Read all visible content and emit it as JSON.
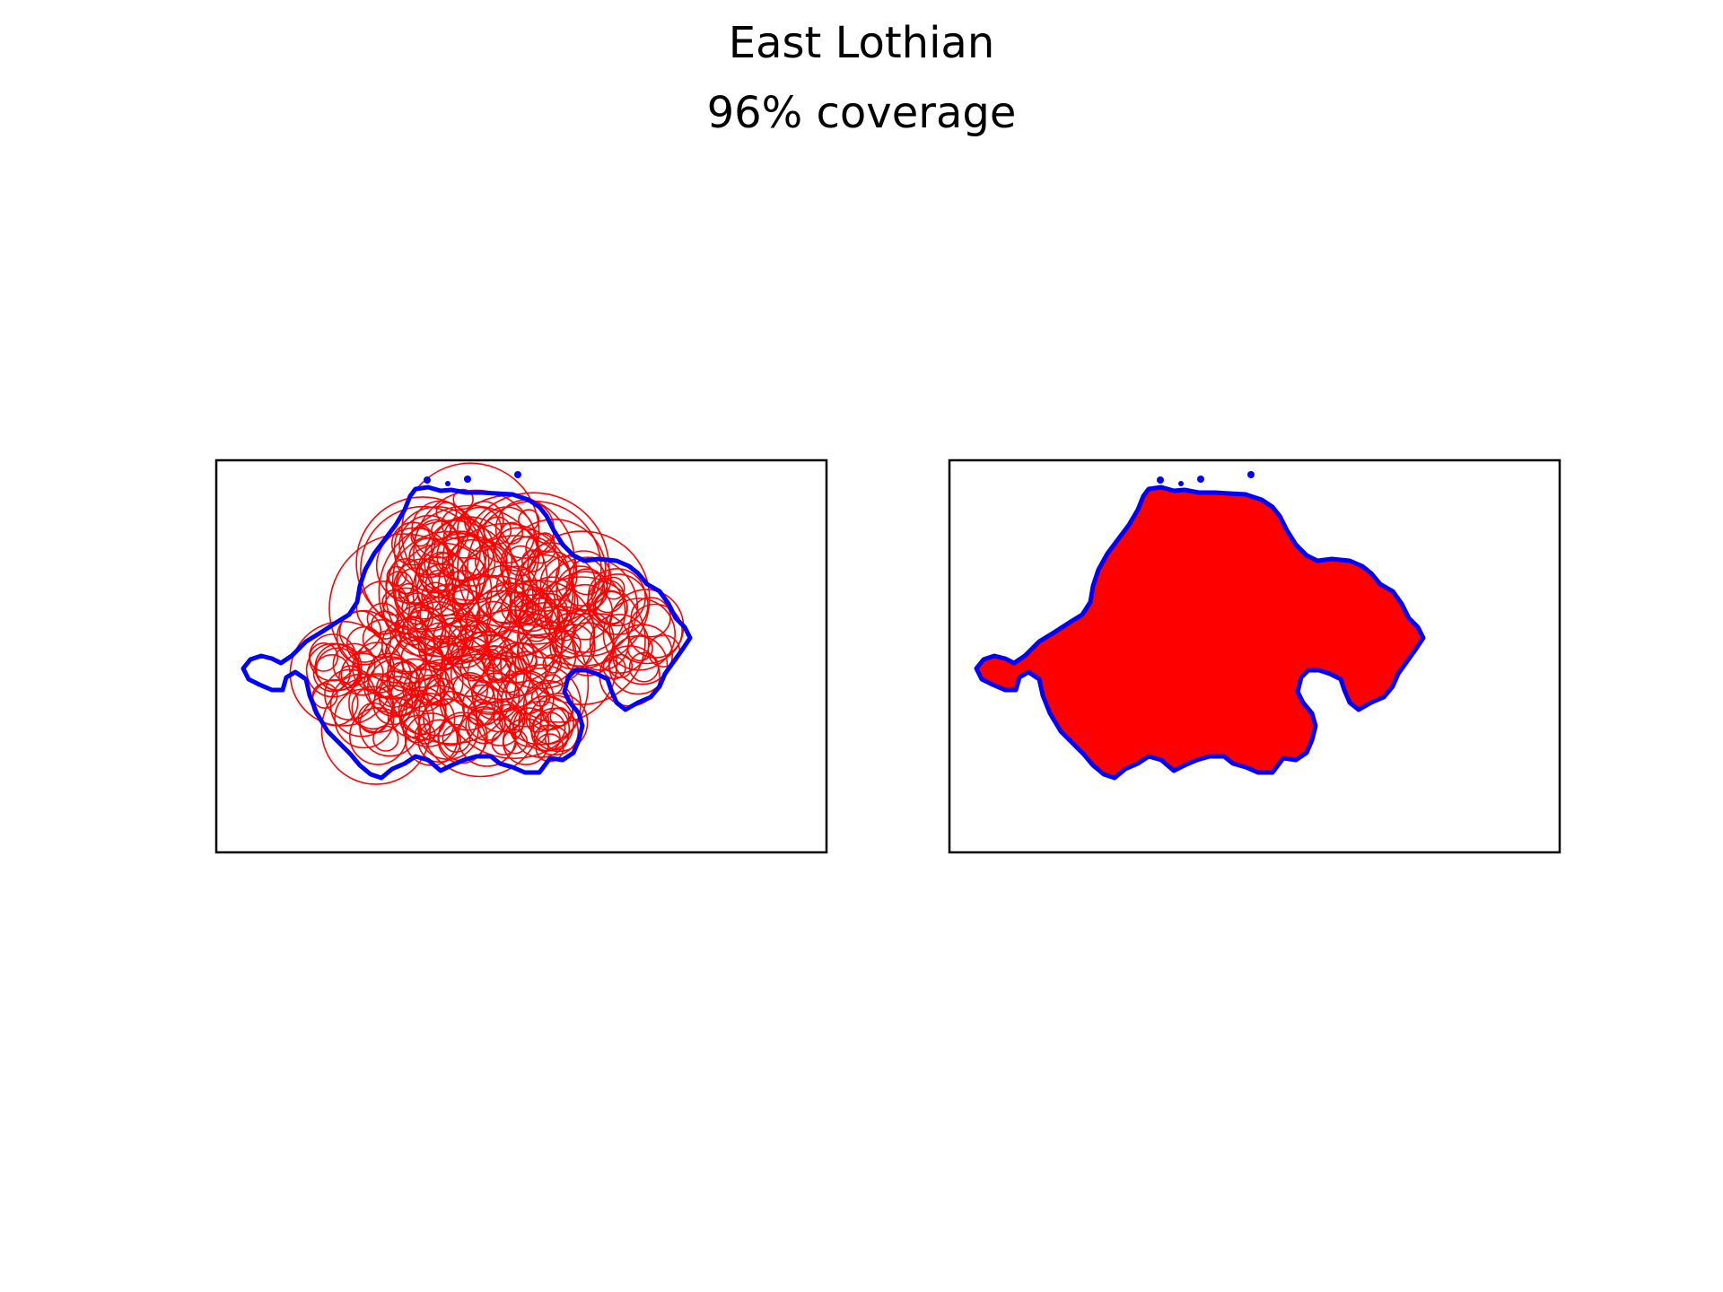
{
  "figure": {
    "title": "East Lothian",
    "subtitle": "96% coverage"
  },
  "colors": {
    "boundary": "#0000ff",
    "circles": "#ff0000",
    "fill": "#ff0000",
    "frame": "#000000",
    "background": "#ffffff"
  },
  "panels": [
    {
      "name": "circle-packing-panel",
      "style": "circle outlines"
    },
    {
      "name": "filled-coverage-panel",
      "style": "solid fill"
    }
  ]
}
